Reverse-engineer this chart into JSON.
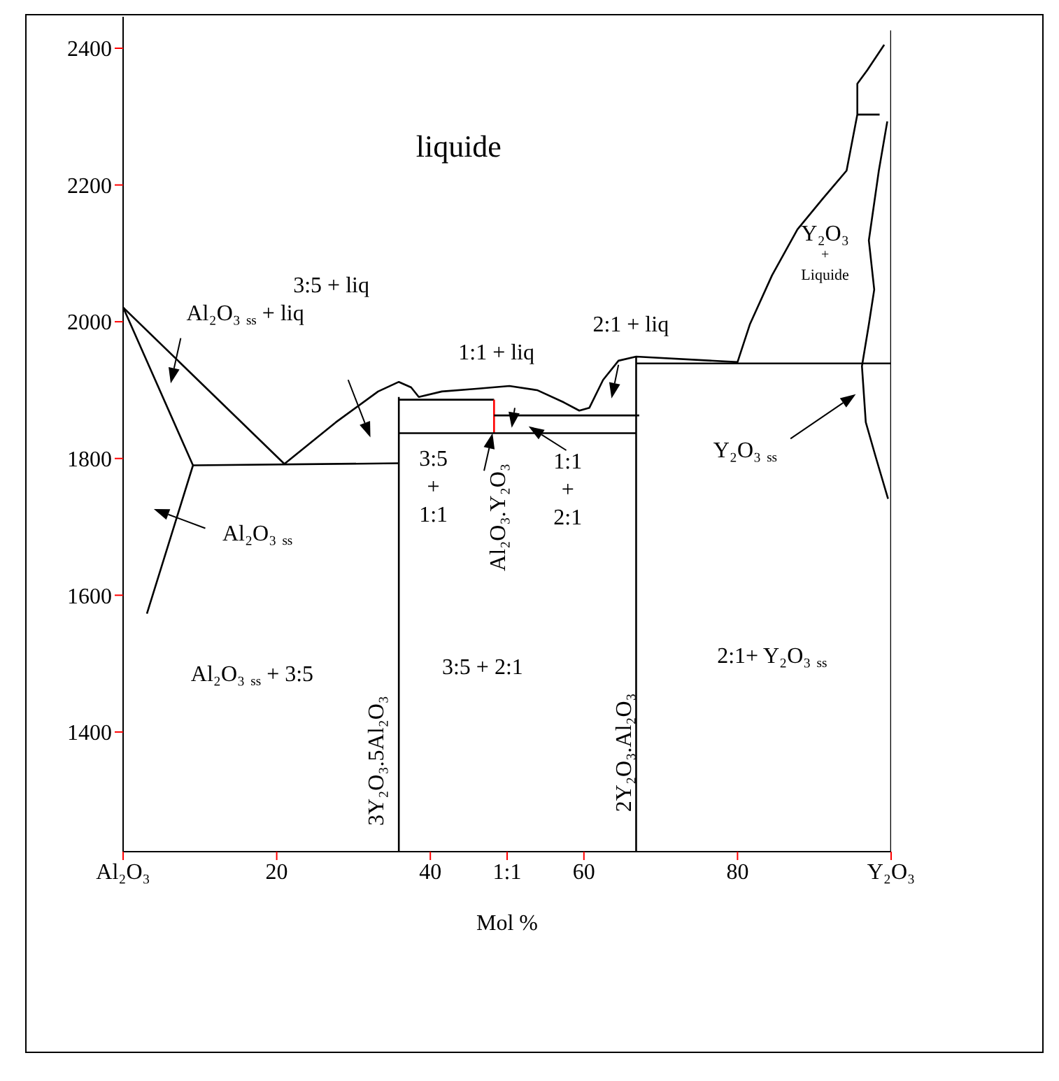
{
  "chart_data": {
    "type": "line",
    "xlabel": "Mol %",
    "xlim": [
      0,
      100
    ],
    "ylim": [
      1225,
      2446
    ],
    "xticks": [
      {
        "value": 0,
        "label": "Al₂O₃"
      },
      20,
      40,
      {
        "value": 50,
        "label": "1:1"
      },
      60,
      80,
      {
        "value": 100,
        "label": "Y₂O₃"
      }
    ],
    "yticks": [
      1400,
      1600,
      1800,
      2000,
      2200,
      2400
    ],
    "marker": "none",
    "series": [
      {
        "color": "#000000",
        "x": [
          0,
          21,
          27.7,
          33.2,
          35.9,
          37.5,
          38.5,
          41.5,
          46,
          50.3,
          53.9,
          57.4,
          59.4,
          60.7,
          62.5,
          64.5,
          66.8,
          80,
          81.6,
          84.5,
          87.8,
          91.1,
          94.2,
          95.6,
          95.6,
          96.9,
          99.1
        ],
        "values": [
          2021,
          1792,
          1853,
          1898,
          1912,
          1904,
          1890,
          1898,
          1902,
          1906,
          1900,
          1882,
          1870,
          1874,
          1915,
          1943,
          1949,
          1941,
          1996,
          2068,
          2135,
          2180,
          2221,
          2303,
          2348,
          2368,
          2405
        ]
      },
      {
        "color": "#000000",
        "x": [
          0,
          9.1,
          3.1
        ],
        "values": [
          2021,
          1790,
          1573
        ]
      },
      {
        "color": "#000000",
        "x": [
          9.1,
          35.9
        ],
        "values": [
          1790,
          1793
        ]
      },
      {
        "color": "#000000",
        "x": [
          95.6,
          98.5
        ],
        "values": [
          2303,
          2303
        ]
      },
      {
        "color": "#000000",
        "x": [
          99.5,
          98.4,
          97.1,
          97.8,
          97.1,
          96.2,
          96.7,
          98,
          99.6
        ],
        "values": [
          2293,
          2221,
          2119,
          2047,
          1996,
          1935,
          1853,
          1802,
          1741
        ]
      },
      {
        "color": "#000000",
        "x": [
          66.8,
          100
        ],
        "values": [
          1939,
          1939
        ]
      },
      {
        "color": "#000000",
        "x": [
          35.9,
          35.9
        ],
        "values": [
          1225,
          1890
        ]
      },
      {
        "color": "#000000",
        "x": [
          35.9,
          48.3
        ],
        "values": [
          1886,
          1886
        ]
      },
      {
        "color": "#ff0000",
        "x": [
          48.3,
          48.3
        ],
        "values": [
          1886,
          1837
        ]
      },
      {
        "color": "#000000",
        "x": [
          35.9,
          66.8
        ],
        "values": [
          1837,
          1837
        ]
      },
      {
        "color": "#000000",
        "x": [
          48.3,
          67.2
        ],
        "values": [
          1863,
          1863
        ]
      },
      {
        "color": "#000000",
        "x": [
          66.8,
          66.8
        ],
        "values": [
          1225,
          1949
        ]
      },
      {
        "color": "#000000",
        "x": [
          100,
          100
        ],
        "values": [
          1225,
          2426
        ]
      }
    ],
    "annotations": [
      "liquide",
      "Al₂O₃ $_{ss}$ + liq",
      "3:5 + liq",
      "1:1 + liq",
      "2:1 + liq",
      "Y₂O₃",
      "+",
      "Liquide",
      "Y₂O₃ $_{ss}$",
      "Al₂O₃ $_{ss}$",
      "3:5",
      "+",
      "1:1",
      "1:1",
      "+",
      "2:1",
      "Al₂O₃.Y₂O₃",
      "3Y₂O₃.5Al₂O₃",
      "2Y₂O₃.Al₂O₃",
      "Al₂O₃ $_{ss}$ + 3:5",
      "3:5 + 2:1",
      "2:1+ Y₂O₃ $_{ss}$"
    ]
  }
}
